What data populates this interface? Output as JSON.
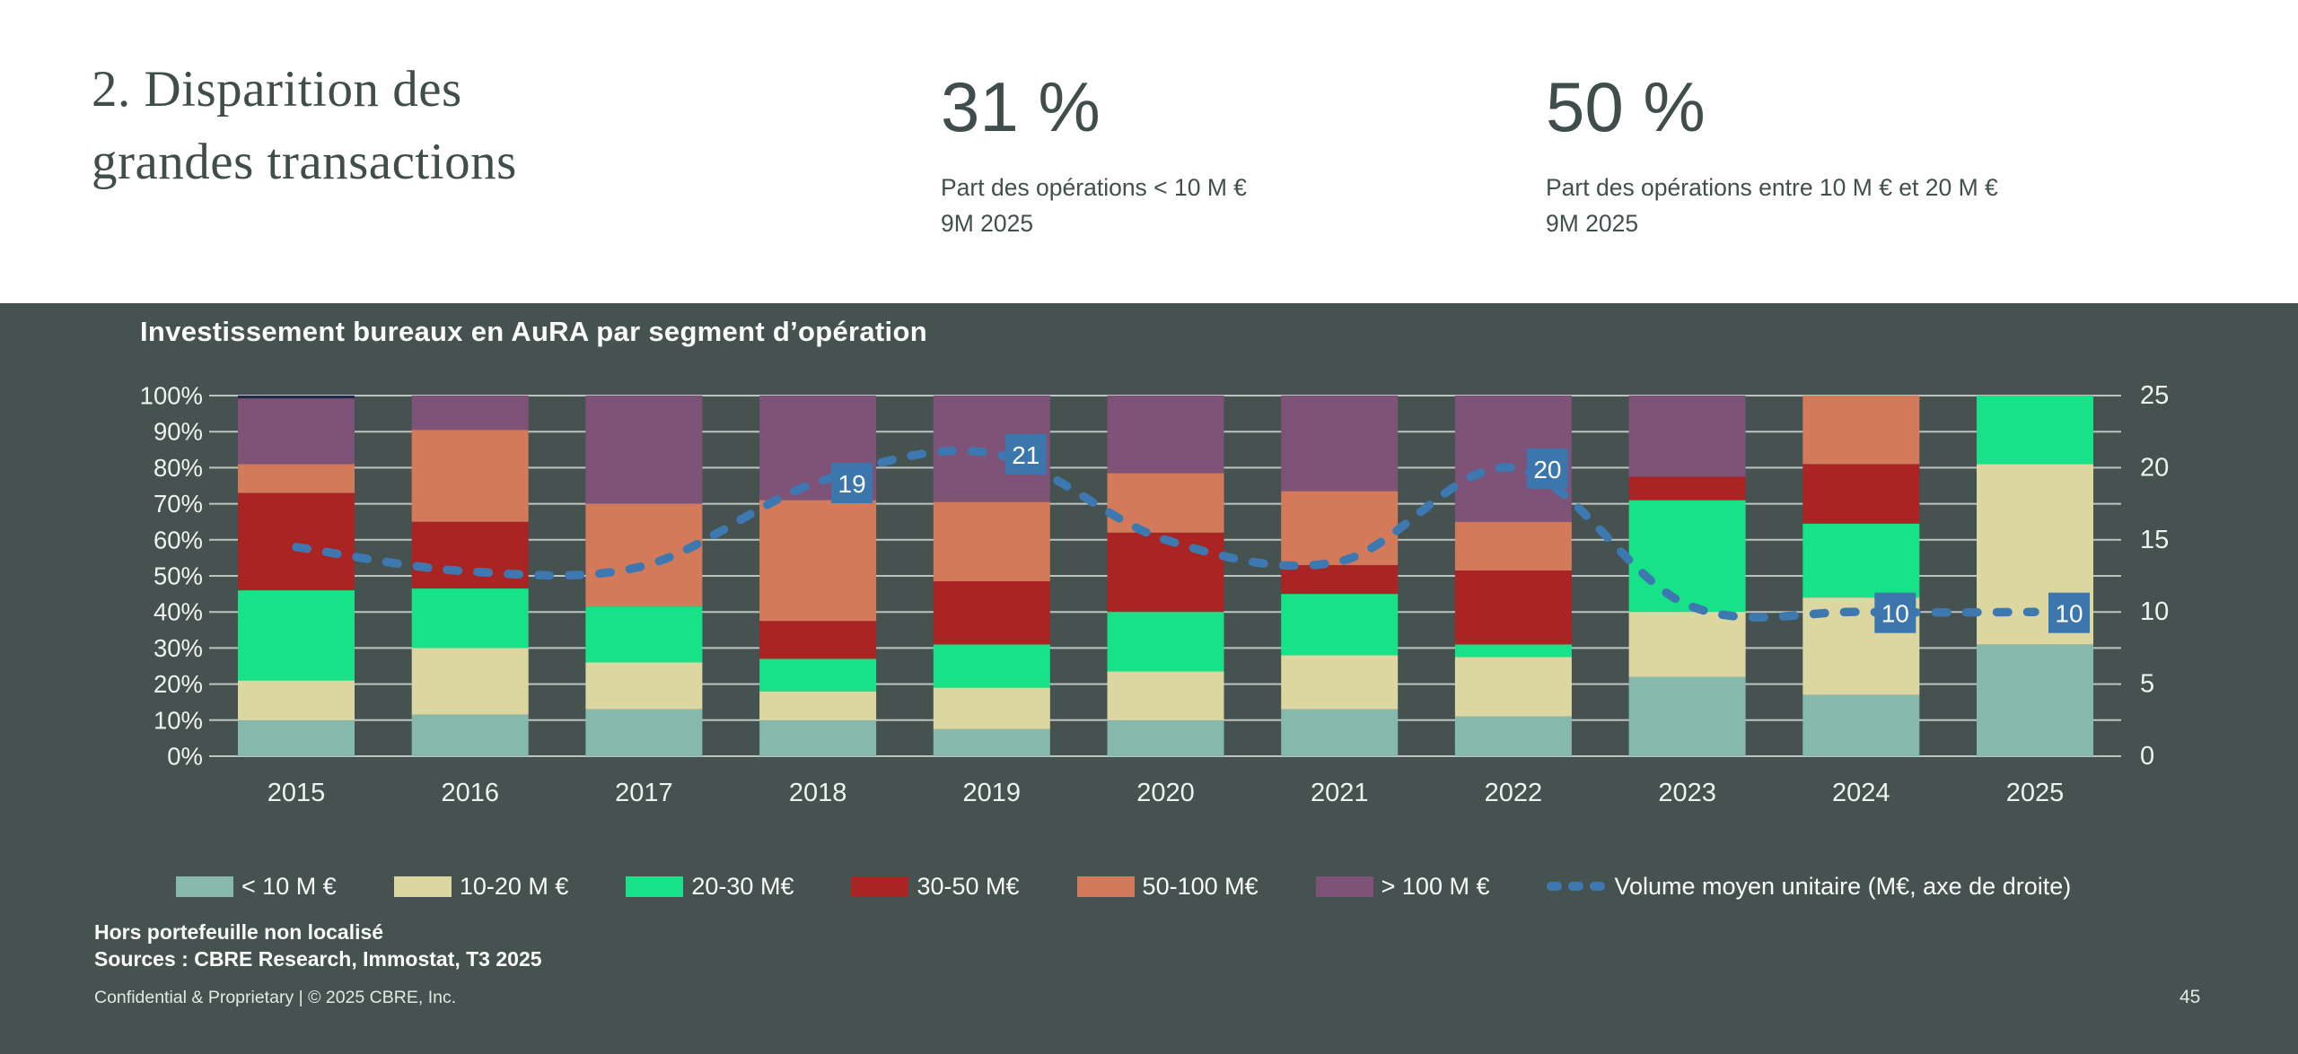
{
  "header": {
    "title_line1": "2. Disparition des",
    "title_line2": "grandes transactions",
    "stats": [
      {
        "value": "31 %",
        "label_line1": "Part des opérations < 10 M €",
        "label_line2": "9M 2025"
      },
      {
        "value": "50 %",
        "label_line1": "Part des opérations entre 10 M € et 20 M €",
        "label_line2": "9M 2025"
      }
    ]
  },
  "chart_data": {
    "type": "bar",
    "subtype": "stacked-percent-with-line",
    "title": "Investissement bureaux en AuRA par segment d’opération",
    "categories": [
      "2015",
      "2016",
      "2017",
      "2018",
      "2019",
      "2020",
      "2021",
      "2022",
      "2023",
      "2024",
      "2025"
    ],
    "series": [
      {
        "name": "< 10 M €",
        "color": "#86b8ac",
        "values": [
          10,
          11.5,
          13,
          10,
          7.5,
          10,
          13,
          11,
          22,
          17,
          31
        ]
      },
      {
        "name": "10-20 M €",
        "color": "#dcd7a0",
        "values": [
          11,
          18.5,
          13,
          8,
          11.5,
          13.5,
          15,
          16.5,
          18,
          27,
          50
        ]
      },
      {
        "name": "20-30 M€",
        "color": "#17e288",
        "values": [
          25,
          16.5,
          15.5,
          9,
          12,
          16.5,
          17,
          3.5,
          31,
          20.5,
          19
        ]
      },
      {
        "name": "30-50 M€",
        "color": "#a92423",
        "values": [
          27,
          18.5,
          0,
          10.5,
          17.5,
          22,
          8,
          20.5,
          6.5,
          16.5,
          0
        ]
      },
      {
        "name": "50-100 M€",
        "color": "#d37a5b",
        "values": [
          8,
          25.5,
          28.5,
          33.5,
          22,
          16.5,
          20.5,
          13.5,
          0,
          19,
          0
        ]
      },
      {
        "name": "> 100 M €",
        "color": "#7f5278",
        "values": [
          19,
          9.5,
          30,
          29,
          29.5,
          21.5,
          26.5,
          35,
          22.5,
          0,
          0
        ]
      }
    ],
    "top_cap": {
      "category": "2015",
      "percent": 0.8,
      "color": "#1f2b47"
    },
    "line": {
      "name": "Volume moyen unitaire (M€, axe de droite)",
      "color": "#3d79b0",
      "label_bg": "#3b76ad",
      "values": [
        14.5,
        12.8,
        13.2,
        19,
        21,
        15,
        13.5,
        20,
        10.5,
        10,
        10
      ],
      "labels": [
        {
          "index": 3,
          "text": "19"
        },
        {
          "index": 4,
          "text": "21"
        },
        {
          "index": 7,
          "text": "20"
        },
        {
          "index": 9,
          "text": "10"
        },
        {
          "index": 10,
          "text": "10"
        }
      ]
    },
    "left_axis": {
      "min": 0,
      "max": 100,
      "tick_labels_top_down": [
        "100%",
        "90%",
        "80%",
        "70%",
        "60%",
        "50%",
        "40%",
        "30%",
        "20%",
        "10%",
        "0%"
      ]
    },
    "right_axis": {
      "min": 0,
      "max": 25,
      "tick_labels_top_down": [
        "25",
        "20",
        "15",
        "10",
        "5",
        "0"
      ]
    },
    "grid": true,
    "legend_position": "bottom"
  },
  "footnotes": {
    "note1": "Hors portefeuille non localisé",
    "note2": "Sources : CBRE Research, Immostat, T3 2025"
  },
  "footer": {
    "confidential": "Confidential & Proprietary  |  © 2025 CBRE, Inc.",
    "page_number": "45"
  },
  "colors": {
    "panel_bg": "#455250",
    "header_bg": "#ffffff",
    "header_text": "#3f4e4b",
    "grid_line": "#c9d1ce",
    "axis_text": "#eef2f0"
  }
}
